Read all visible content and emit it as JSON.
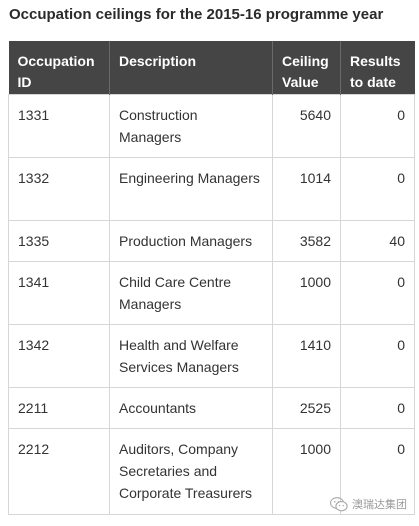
{
  "page": {
    "title": "Occupation ceilings for the 2015-16 programme year"
  },
  "table": {
    "headers": {
      "occupation_id": "Occupation ID",
      "description": "Description",
      "ceiling_value": "Ceiling Value",
      "results": "Results to date"
    },
    "rows": [
      {
        "id": "1331",
        "description": "Construction Managers",
        "ceiling": "5640",
        "results": "0"
      },
      {
        "id": "1332",
        "description": "Engineering Managers",
        "ceiling": "1014",
        "results": "0"
      },
      {
        "id": "1335",
        "description": "Production Managers",
        "ceiling": "3582",
        "results": "40"
      },
      {
        "id": "1341",
        "description": "Child Care Centre Managers",
        "ceiling": "1000",
        "results": "0"
      },
      {
        "id": "1342",
        "description": "Health and Welfare Services Managers",
        "ceiling": "1410",
        "results": "0"
      },
      {
        "id": "2211",
        "description": "Accountants",
        "ceiling": "2525",
        "results": "0"
      },
      {
        "id": "2212",
        "description": "Auditors, Company Secretaries and Corporate Treasurers",
        "ceiling": "1000",
        "results": "0"
      }
    ]
  },
  "watermark": {
    "text": "澳瑞达集团",
    "icon": "wechat-icon",
    "color": "#9a9a9a"
  },
  "colors": {
    "header_bg": "#454545",
    "header_text": "#ffffff",
    "border": "#d6d6d6",
    "text": "#333333"
  }
}
